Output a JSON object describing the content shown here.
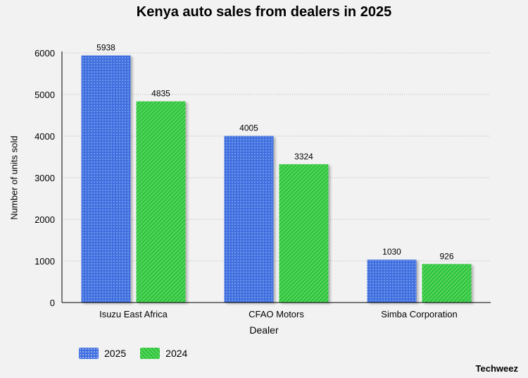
{
  "chart_data": {
    "type": "bar",
    "title": "Kenya auto sales from dealers in 2025",
    "xlabel": "Dealer",
    "ylabel": "Number of units sold",
    "categories": [
      "Isuzu East Africa",
      "CFAO Motors",
      "Simba Corporation"
    ],
    "series": [
      {
        "name": "2025",
        "values": [
          5938,
          4005,
          1030
        ],
        "color": "#3f6fe0"
      },
      {
        "name": "2024",
        "values": [
          4835,
          3324,
          926
        ],
        "color": "#2fc63a"
      }
    ],
    "ylim": [
      0,
      6000
    ],
    "yticks": [
      0,
      1000,
      2000,
      3000,
      4000,
      5000,
      6000
    ],
    "grid": true,
    "legend_position": "bottom-left"
  },
  "source": "Techweez"
}
